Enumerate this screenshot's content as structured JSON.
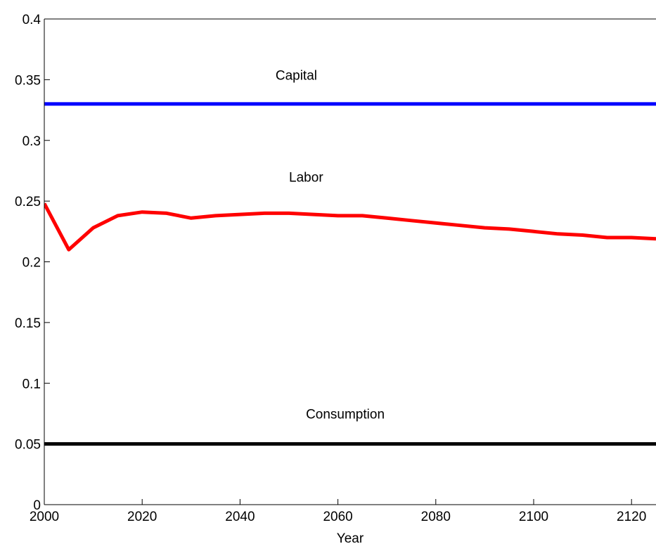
{
  "chart_data": {
    "type": "line",
    "title": "",
    "xlabel": "Year",
    "ylabel": "",
    "xlim": [
      2000,
      2125
    ],
    "ylim": [
      0,
      0.4
    ],
    "x_ticks": [
      2000,
      2020,
      2040,
      2060,
      2080,
      2100,
      2120
    ],
    "x_tick_labels": [
      "2000",
      "2020",
      "2040",
      "2060",
      "2080",
      "2100",
      "2120"
    ],
    "y_ticks": [
      0,
      0.05,
      0.1,
      0.15,
      0.2,
      0.25,
      0.3,
      0.35,
      0.4
    ],
    "y_tick_labels": [
      "0",
      "0.05",
      "0.1",
      "0.15",
      "0.2",
      "0.25",
      "0.3",
      "0.35",
      "0.4"
    ],
    "grid": false,
    "legend": "none",
    "series": [
      {
        "label": "Capital",
        "color": "#0000ff",
        "x": [
          2000,
          2125
        ],
        "y": [
          0.33,
          0.33
        ]
      },
      {
        "label": "Labor",
        "color": "#ff0000",
        "x": [
          2000,
          2005,
          2010,
          2015,
          2020,
          2025,
          2030,
          2035,
          2040,
          2045,
          2050,
          2055,
          2060,
          2065,
          2070,
          2075,
          2080,
          2085,
          2090,
          2095,
          2100,
          2105,
          2110,
          2115,
          2120,
          2125
        ],
        "y": [
          0.248,
          0.21,
          0.228,
          0.238,
          0.241,
          0.24,
          0.236,
          0.238,
          0.239,
          0.24,
          0.24,
          0.239,
          0.238,
          0.238,
          0.236,
          0.234,
          0.232,
          0.23,
          0.228,
          0.227,
          0.225,
          0.223,
          0.222,
          0.22,
          0.22,
          0.219
        ]
      },
      {
        "label": "Consumption",
        "color": "#000000",
        "x": [
          2000,
          2125
        ],
        "y": [
          0.05,
          0.05
        ]
      }
    ],
    "annotations": [
      {
        "text": "Capital",
        "x": 2051.5,
        "y": 0.35
      },
      {
        "text": "Labor",
        "x": 2053.5,
        "y": 0.266
      },
      {
        "text": "Consumption",
        "x": 2061.5,
        "y": 0.071
      }
    ]
  }
}
